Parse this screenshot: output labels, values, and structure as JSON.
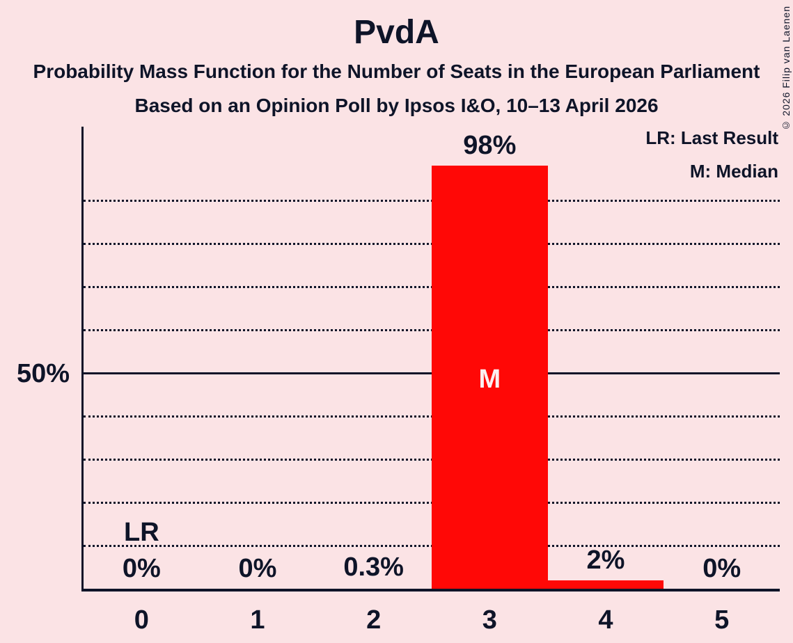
{
  "header": {
    "title": "PvdA",
    "subtitle1": "Probability Mass Function for the Number of Seats in the European Parliament",
    "subtitle2": "Based on an Opinion Poll by Ipsos I&O, 10–13 April 2026"
  },
  "legend": {
    "lr": "LR: Last Result",
    "m": "M: Median"
  },
  "copyright": "© 2026 Filip van Laenen",
  "chart_data": {
    "type": "bar",
    "title": "PvdA",
    "categories": [
      "0",
      "1",
      "2",
      "3",
      "4",
      "5"
    ],
    "values": [
      0,
      0,
      0.3,
      98,
      2,
      0
    ],
    "value_labels": [
      "0%",
      "0%",
      "0.3%",
      "98%",
      "2%",
      "0%"
    ],
    "y_tick": {
      "value": 50,
      "label": "50%"
    },
    "ylim": [
      0,
      107
    ],
    "gridlines_pct": [
      10,
      20,
      30,
      40,
      60,
      70,
      80,
      90
    ],
    "solid_line_pct": 50,
    "grid": "dotted horizontal",
    "legend_position": "top-right",
    "annotations": [
      {
        "id": "last-result",
        "text": "LR",
        "category": 0,
        "meaning": "Last Result"
      },
      {
        "id": "median",
        "text": "M",
        "category": 3,
        "meaning": "Median"
      }
    ],
    "bar_color": "#ff0806",
    "background_color": "#fbe3e5",
    "text_color": "#0e1428",
    "median_text_color": "#fbeff1"
  }
}
